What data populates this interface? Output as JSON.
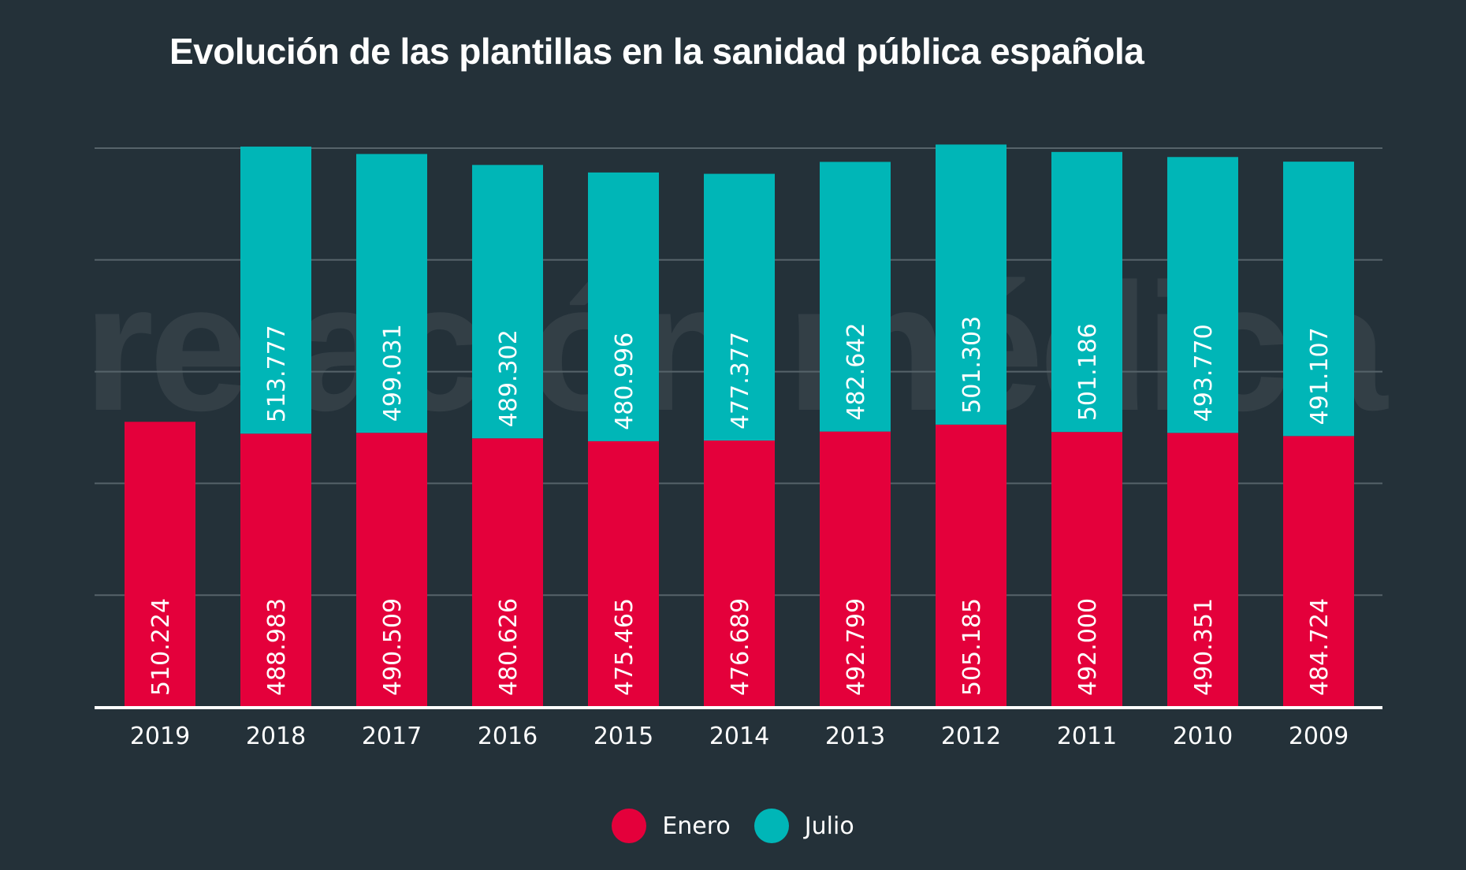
{
  "watermark": "relación médica",
  "chart_data": {
    "type": "bar",
    "stacked": true,
    "title": "Evolución de las plantillas en la sanidad pública española",
    "xlabel": "",
    "ylabel": "",
    "categories": [
      "2019",
      "2018",
      "2017",
      "2016",
      "2015",
      "2014",
      "2013",
      "2012",
      "2011",
      "2010",
      "2009"
    ],
    "series": [
      {
        "name": "Enero",
        "color": "#e4003b",
        "values": [
          510224,
          488983,
          490509,
          480626,
          475465,
          476689,
          492799,
          505185,
          492000,
          490351,
          484724
        ],
        "labels": [
          "510.224",
          "488.983",
          "490.509",
          "480.626",
          "475.465",
          "476.689",
          "492.799",
          "505.185",
          "492.000",
          "490.351",
          "484.724"
        ]
      },
      {
        "name": "Julio",
        "color": "#00b6b7",
        "values": [
          null,
          513777,
          499031,
          489302,
          480996,
          477377,
          482642,
          501303,
          501186,
          493770,
          491107
        ],
        "labels": [
          null,
          "513.777",
          "499.031",
          "489.302",
          "480.996",
          "477.377",
          "482.642",
          "501.303",
          "501.186",
          "493.770",
          "491.107"
        ]
      }
    ],
    "ylim": [
      0,
      1000000
    ],
    "yticks": [
      0,
      200000,
      400000,
      600000,
      800000,
      1000000
    ],
    "y_tick_labels_shown": false,
    "grid": true,
    "legend": "bottom-center"
  }
}
